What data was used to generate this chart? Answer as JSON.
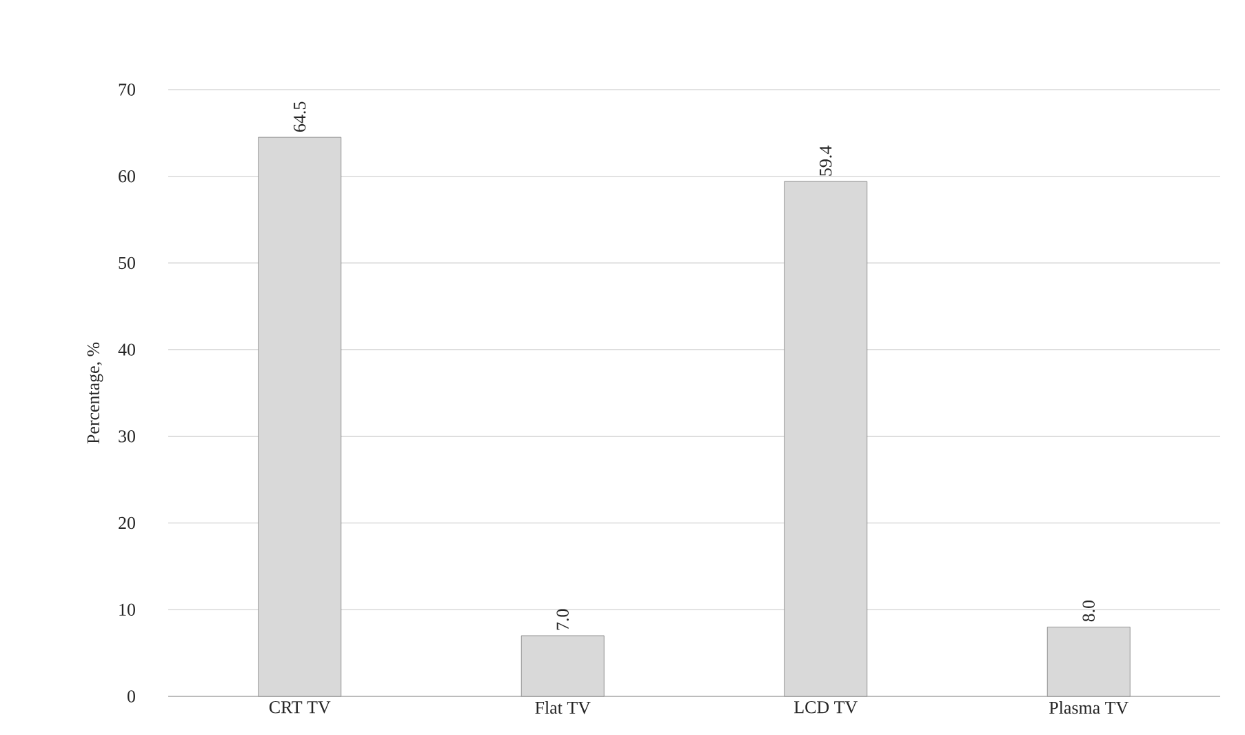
{
  "chart_data": {
    "type": "bar",
    "ylabel": "Percentage, %",
    "categories": [
      "CRT TV",
      "Flat TV",
      "LCD TV",
      "Plasma TV"
    ],
    "values": [
      64.5,
      7.0,
      59.4,
      8.0
    ],
    "value_labels": [
      "64.5",
      "7.0",
      "59.4",
      "8.0"
    ],
    "color": "#d9d9d9",
    "ylim": [
      0,
      70
    ],
    "yticks": [
      0,
      10,
      20,
      30,
      40,
      50,
      60,
      70
    ],
    "grid": "y"
  }
}
